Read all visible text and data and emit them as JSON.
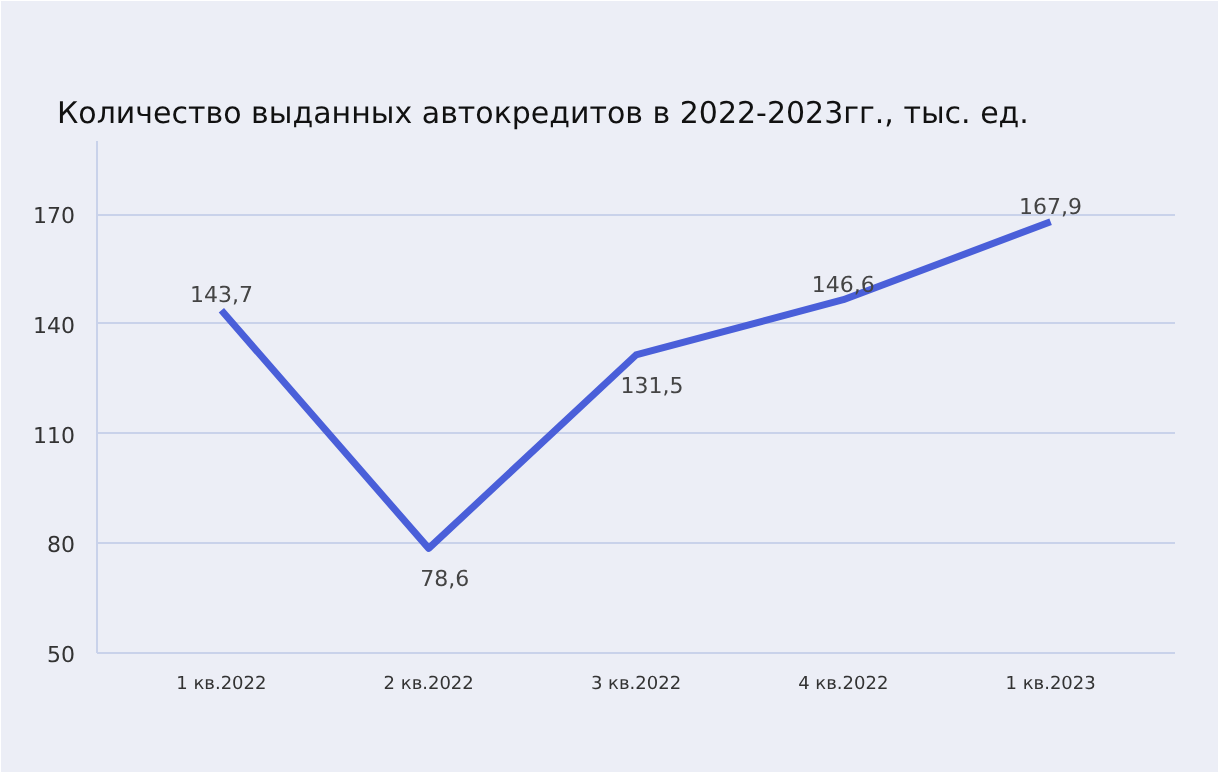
{
  "chart_data": {
    "type": "line",
    "title": "Количество выданных автокредитов в 2022-2023гг., тыс. ед.",
    "categories": [
      "1 кв.2022",
      "2 кв.2022",
      "3 кв.2022",
      "4 кв.2022",
      "1 кв.2023"
    ],
    "series": [
      {
        "color": "#4a5fd9",
        "values": [
          143.7,
          78.6,
          131.5,
          146.6,
          167.9
        ],
        "value_labels": [
          "143,7",
          "78,6",
          "131,5",
          "146,6",
          "167,9"
        ]
      }
    ],
    "ylim": [
      50,
      190
    ],
    "yticks": [
      50,
      80,
      110,
      140,
      170
    ],
    "grid": "y",
    "marker": "none",
    "line_style": "solid"
  }
}
